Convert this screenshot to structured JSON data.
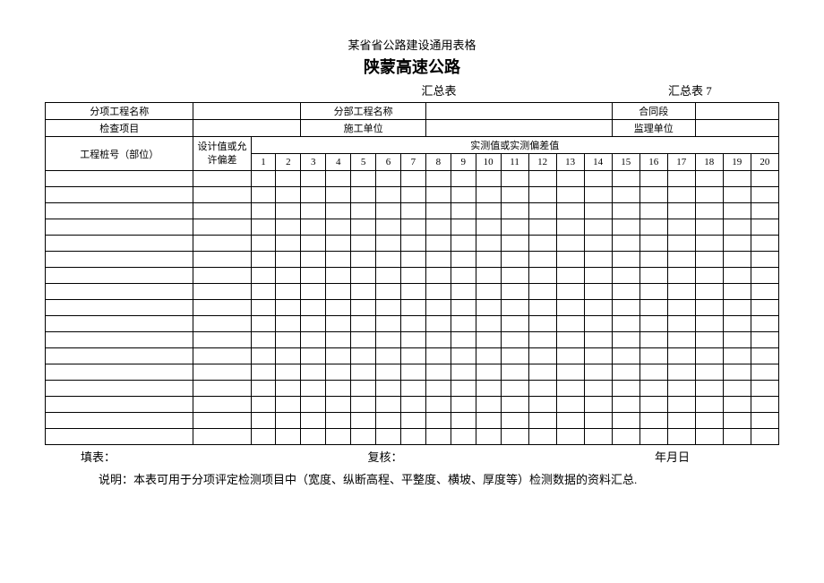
{
  "header": {
    "supertitle": "某省省公路建设通用表格",
    "title": "陕蒙高速公路",
    "subtitle_center": "汇总表",
    "subtitle_right": "汇总表 7"
  },
  "info_rows": {
    "r1c1_label": "分项工程名称",
    "r1c1_value": "",
    "r1c2_label": "分部工程名称",
    "r1c2_value": "",
    "r1c3_label": "合同段",
    "r1c3_value": "",
    "r2c1_label": "检查项目",
    "r2c1_value": "",
    "r2c2_label": "施工单位",
    "r2c2_value": "",
    "r2c3_label": "监理单位",
    "r2c3_value": ""
  },
  "table_headers": {
    "pile_no": "工程桩号（部位）",
    "design_tol": "设计值或允许偏差",
    "measured_header": "实测值或实测偏差值",
    "cols": [
      "1",
      "2",
      "3",
      "4",
      "5",
      "6",
      "7",
      "8",
      "9",
      "10",
      "11",
      "12",
      "13",
      "14",
      "15",
      "16",
      "17",
      "18",
      "19",
      "20"
    ]
  },
  "data_row_count": 17,
  "footer": {
    "left": "填表：",
    "center": "复核：",
    "right": "年月日"
  },
  "note": "说明：本表可用于分项评定检测项目中（宽度、纵断高程、平整度、横坡、厚度等）检测数据的资料汇总."
}
